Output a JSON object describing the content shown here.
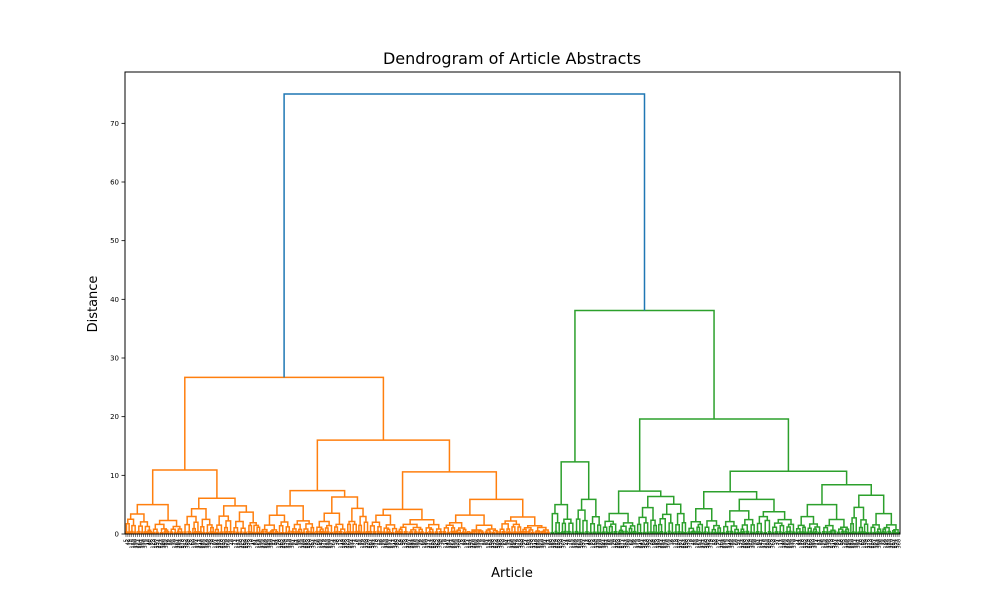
{
  "chart_data": {
    "type": "dendrogram",
    "title": "Dendrogram of Article Abstracts",
    "xlabel": "Article",
    "ylabel": "Distance",
    "ylim": [
      0,
      78.75
    ],
    "yticks": [
      0,
      10,
      20,
      30,
      40,
      50,
      60,
      70
    ],
    "grid": false,
    "legend": "none",
    "colors": {
      "root_link": "#1f77b4",
      "cluster_1": "#ff7f0e",
      "cluster_2": "#2ca02c",
      "axes": "#000000"
    },
    "root_merge_height": 75,
    "clusters": [
      {
        "color_key": "cluster_1",
        "x_extent": [
          0,
          0.5484
        ],
        "merge_height": 26.7,
        "tree": {
          "h": 26.7,
          "children": [
            {
              "h": 10.9,
              "children": [
                {
                  "h": 5.0,
                  "children": [
                    {
                      "h": 3.4,
                      "leaf_span": [
                        0.0,
                        0.035
                      ]
                    },
                    {
                      "h": 2.3,
                      "leaf_span": [
                        0.035,
                        0.075
                      ]
                    }
                  ]
                },
                {
                  "h": 6.1,
                  "children": [
                    {
                      "h": 4.3,
                      "leaf_span": [
                        0.075,
                        0.115
                      ]
                    },
                    {
                      "h": 4.8,
                      "leaf_span": [
                        0.115,
                        0.175
                      ]
                    }
                  ]
                }
              ]
            },
            {
              "h": 16.0,
              "children": [
                {
                  "h": 7.4,
                  "children": [
                    {
                      "h": 4.8,
                      "leaf_span": [
                        0.175,
                        0.245
                      ]
                    },
                    {
                      "h": 6.3,
                      "leaf_span": [
                        0.245,
                        0.315
                      ]
                    }
                  ]
                },
                {
                  "h": 10.6,
                  "children": [
                    {
                      "h": 4.2,
                      "leaf_span": [
                        0.315,
                        0.41
                      ]
                    },
                    {
                      "h": 5.9,
                      "leaf_span": [
                        0.41,
                        0.5484
                      ]
                    }
                  ]
                }
              ]
            }
          ]
        }
      },
      {
        "color_key": "cluster_2",
        "x_extent": [
          0.5484,
          1
        ],
        "merge_height": 38.1,
        "tree": {
          "h": 38.1,
          "children": [
            {
              "h": 12.3,
              "children": [
                {
                  "h": 5.0,
                  "leaf_span": [
                    0.5484,
                    0.58
                  ]
                },
                {
                  "h": 5.9,
                  "leaf_span": [
                    0.58,
                    0.615
                  ]
                }
              ]
            },
            {
              "h": 19.6,
              "children": [
                {
                  "h": 7.3,
                  "children": [
                    {
                      "h": 3.5,
                      "leaf_span": [
                        0.615,
                        0.66
                      ]
                    },
                    {
                      "h": 6.4,
                      "leaf_span": [
                        0.66,
                        0.725
                      ]
                    }
                  ]
                },
                {
                  "h": 10.7,
                  "children": [
                    {
                      "h": 7.2,
                      "children": [
                        {
                          "h": 4.3,
                          "leaf_span": [
                            0.725,
                            0.77
                          ]
                        },
                        {
                          "h": 5.9,
                          "leaf_span": [
                            0.77,
                            0.865
                          ]
                        }
                      ]
                    },
                    {
                      "h": 8.4,
                      "children": [
                        {
                          "h": 5.0,
                          "leaf_span": [
                            0.865,
                            0.935
                          ]
                        },
                        {
                          "h": 6.6,
                          "leaf_span": [
                            0.935,
                            1.0
                          ]
                        }
                      ]
                    }
                  ]
                }
              ]
            }
          ]
        }
      }
    ]
  }
}
